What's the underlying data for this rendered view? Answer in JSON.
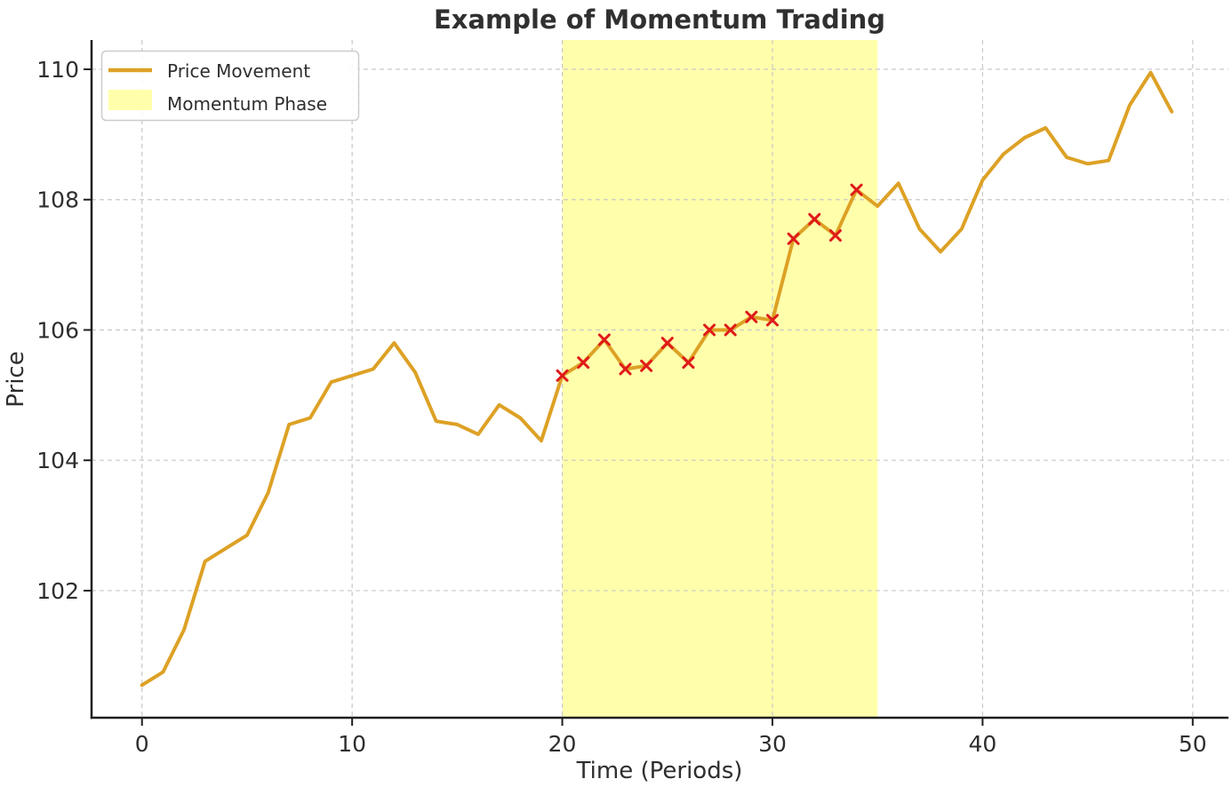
{
  "title": {
    "text": "Example of Momentum Trading"
  },
  "axes": {
    "x_label": "Time (Periods)",
    "y_label": "Price"
  },
  "legend": {
    "position": "upper-left",
    "items": [
      {
        "label": "Price Movement",
        "swatch": "line"
      },
      {
        "label": "Momentum Phase",
        "swatch": "patch"
      }
    ]
  },
  "colors": {
    "price_line": "#DDA125",
    "marker": "#E01A1A",
    "band_fill": "rgba(255,255,0,0.33)",
    "grid": "#C9C9C9",
    "axis": "#1F1F1F",
    "text": "#2E2E2E",
    "title": "#303030",
    "legend_border": "#CCCCCC",
    "legend_bg": "rgba(255,255,255,0.88)"
  },
  "chart_data": {
    "type": "line",
    "title": "Example of Momentum Trading",
    "xlabel": "Time (Periods)",
    "ylabel": "Price",
    "x": [
      0,
      1,
      2,
      3,
      4,
      5,
      6,
      7,
      8,
      9,
      10,
      11,
      12,
      13,
      14,
      15,
      16,
      17,
      18,
      19,
      20,
      21,
      22,
      23,
      24,
      25,
      26,
      27,
      28,
      29,
      30,
      31,
      32,
      33,
      34,
      35,
      36,
      37,
      38,
      39,
      40,
      41,
      42,
      43,
      44,
      45,
      46,
      47,
      48,
      49
    ],
    "series": [
      {
        "name": "Price Movement",
        "values": [
          100.55,
          100.75,
          101.4,
          102.45,
          102.65,
          102.85,
          103.5,
          104.55,
          104.65,
          105.2,
          105.3,
          105.4,
          105.8,
          105.35,
          104.6,
          104.55,
          104.4,
          104.85,
          104.65,
          104.3,
          105.3,
          105.5,
          105.85,
          105.4,
          105.45,
          105.8,
          105.5,
          106.0,
          106.0,
          106.2,
          106.15,
          107.4,
          107.7,
          107.45,
          108.15,
          107.9,
          108.25,
          107.55,
          107.2,
          107.55,
          108.3,
          108.7,
          108.95,
          109.1,
          108.65,
          108.55,
          108.6,
          109.45,
          109.95,
          109.35
        ]
      }
    ],
    "momentum_phase": {
      "label": "Momentum Phase",
      "x_start": 20,
      "x_end": 35
    },
    "marker_style": "x",
    "marker_indices": [
      20,
      21,
      22,
      23,
      24,
      25,
      26,
      27,
      28,
      29,
      30,
      31,
      32,
      33,
      34
    ],
    "x_ticks": [
      0,
      10,
      20,
      30,
      40,
      50
    ],
    "y_ticks": [
      102,
      104,
      106,
      108,
      110
    ],
    "xlim": [
      -2.4,
      51.7
    ],
    "ylim": [
      100.05,
      110.45
    ],
    "grid": true,
    "grid_style": "dashed",
    "legend_position": "upper-left"
  }
}
